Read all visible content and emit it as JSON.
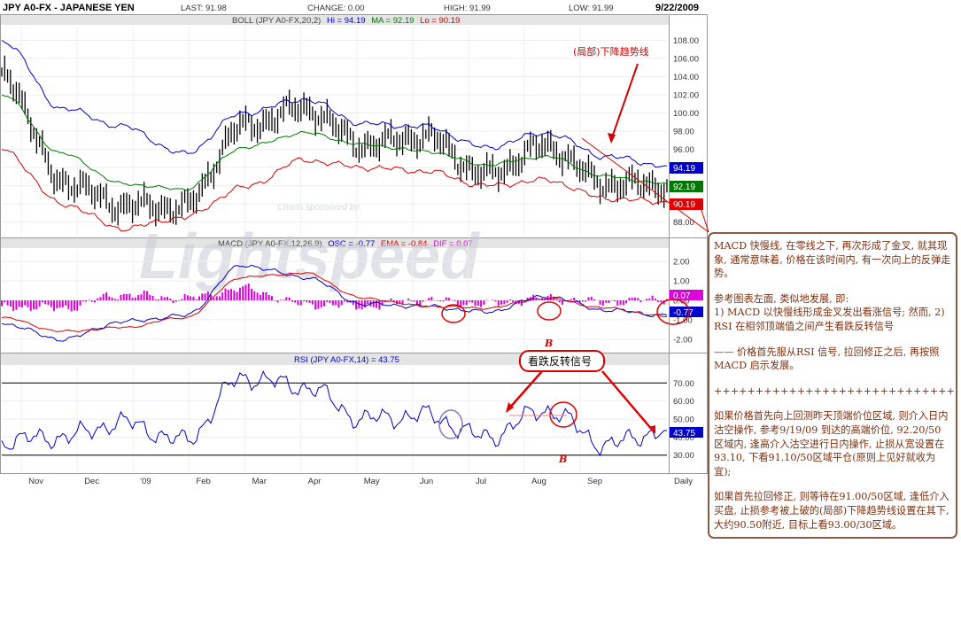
{
  "header": {
    "symbol": "JPY A0-FX - JAPANESE YEN",
    "last": "LAST: 91.98",
    "change": "CHANGE: 0.00",
    "high": "HIGH: 91.99",
    "low": "LOW: 91.99",
    "date": "9/22/2009"
  },
  "boll": {
    "title": "BOLL (JPY A0-FX,20,2)",
    "hi_label": "Hi = 94.19",
    "ma_label": "MA = 92.19",
    "lo_label": "Lo = 90.19",
    "yticks": [
      "108.00",
      "106.00",
      "104.00",
      "102.00",
      "100.00",
      "98.00",
      "96.00",
      "94.00",
      "92.00",
      "90.00",
      "88.00"
    ],
    "ytick_values": [
      108,
      106,
      104,
      102,
      100,
      98,
      96,
      94,
      92,
      90,
      88
    ],
    "ylim": [
      86.5,
      109.5
    ],
    "hi_badge": "94.19",
    "ma_badge": "92.19",
    "lo_badge": "90.19",
    "annotation": "(局部)下降趋势线",
    "watermark_small": "Charts sponsored by:",
    "watermark_big": "Lightspeed"
  },
  "macd": {
    "title": "MACD (JPY A0-FX,12,26,9)",
    "osc_label": "OSC = -0.77",
    "ema_label": "EMA = -0.84",
    "dif_label": "DIF = 0.07",
    "yticks": [
      "2.00",
      "1.00",
      "0.00",
      "-1.00",
      "-2.00"
    ],
    "ytick_values": [
      2,
      1,
      0,
      -1,
      -2
    ],
    "ylim": [
      -2.6,
      2.6
    ],
    "dif_badge": "0.07",
    "osc_badge": "-0.77"
  },
  "rsi": {
    "title": "RSI (JPY A0-FX,14) = 43.75",
    "yticks": [
      "70.00",
      "60.00",
      "50.00",
      "40.00",
      "30.00"
    ],
    "ytick_values": [
      70,
      60,
      50,
      40,
      30
    ],
    "ylim": [
      21,
      79
    ],
    "badge": "43.75",
    "callout": "看跌反转信号",
    "marker_b_top": "B",
    "marker_b_bottom": "B"
  },
  "xaxis": {
    "months": [
      "Nov",
      "Dec",
      "'09",
      "Feb",
      "Mar",
      "Apr",
      "May",
      "Jun",
      "Jul",
      "Aug",
      "Sep"
    ],
    "month_index": [
      0,
      1,
      2,
      3,
      4,
      5,
      6,
      7,
      8,
      9,
      10
    ],
    "period": "Daily"
  },
  "colors": {
    "upper_band": "#0000cc",
    "middle_band": "#007700",
    "lower_band": "#dd0000",
    "price": "#000000",
    "macd_hist": "#dd00dd",
    "annotation": "#d40000",
    "note_text": "#7a2f10",
    "note_border": "#8a5a44"
  },
  "note": {
    "p1": "MACD 快慢线, 在零线之下, 再次形成了金叉, 就其现象, 通常意味着, 价格在该时间内, 有一次向上的反弹走势。",
    "p2a": "参考图表左面, 类似地发展, 即:",
    "p2b": "1) MACD 以快慢线形成金叉发出看涨信号; 然而, 2) RSI 在相邻顶端值之间产生看跌反转信号",
    "p3": "—— 价格首先服从RSI 信号, 拉回修正之后, 再按照MACD 启示发展。",
    "divider": "+++++++++++++++++++++++++++++",
    "p4": "如果价格首先向上回测昨天顶端价位区域, 则介入日内沽空操作, 参考9/19/09 到达的高端价位, 92.20/50 区域内, 逢高介入沽空进行日内操作, 止损从宽设置在93.10, 下看91.10/50区域平仓(原则上见好就收为宜);",
    "p5": "如果首先拉回修正, 则等待在91.00/50区域, 逢低介入买盘, 止损参考被上破的(局部)下降趋势线设置在其下, 大约90.50附近, 目标上看93.00/30区域。"
  },
  "chart_data": [
    {
      "type": "line",
      "title": "BOLL (JPY A0-FX,20,2)",
      "x": [
        "Nov",
        "Dec",
        "'09",
        "Feb",
        "Mar",
        "Apr",
        "May",
        "Jun",
        "Jul",
        "Aug",
        "Sep",
        "Sep-22"
      ],
      "ylim": [
        86.5,
        109.5
      ],
      "series": [
        {
          "name": "Price",
          "values": [
            104.5,
            92.5,
            89.8,
            89.6,
            98.5,
            100.5,
            96.5,
            97.4,
            93.2,
            96.3,
            92.2,
            91.98
          ]
        },
        {
          "name": "Hi",
          "values": [
            108.0,
            100.5,
            98.5,
            95.5,
            100.0,
            101.5,
            98.8,
            98.5,
            96.2,
            97.8,
            95.2,
            94.19
          ]
        },
        {
          "name": "MA",
          "values": [
            102.0,
            95.5,
            92.2,
            91.6,
            96.2,
            97.8,
            96.5,
            95.8,
            94.3,
            95.2,
            93.0,
            92.19
          ]
        },
        {
          "name": "Lo",
          "values": [
            96.0,
            90.0,
            87.3,
            88.5,
            91.8,
            94.8,
            94.0,
            93.6,
            92.0,
            92.6,
            90.6,
            90.19
          ]
        }
      ]
    },
    {
      "type": "line",
      "title": "MACD (JPY A0-FX,12,26,9)",
      "x": [
        "Nov",
        "Dec",
        "'09",
        "Feb",
        "Mar",
        "Apr",
        "May",
        "Jun",
        "Jul",
        "Aug",
        "Sep",
        "Sep-22"
      ],
      "ylim": [
        -2.6,
        2.6
      ],
      "series": [
        {
          "name": "OSC",
          "values": [
            -1.2,
            -2.0,
            -1.1,
            -0.8,
            1.8,
            1.2,
            -0.2,
            -0.3,
            -0.6,
            0.2,
            -0.5,
            -0.77
          ]
        },
        {
          "name": "EMA",
          "values": [
            -0.9,
            -1.6,
            -1.4,
            -0.9,
            1.2,
            1.4,
            0.1,
            -0.3,
            -0.4,
            0.1,
            -0.4,
            -0.84
          ]
        },
        {
          "name": "DIF",
          "values": [
            -0.3,
            -0.4,
            0.3,
            0.1,
            0.6,
            -0.2,
            -0.3,
            0.0,
            -0.2,
            0.1,
            -0.1,
            0.07
          ]
        }
      ]
    },
    {
      "type": "line",
      "title": "RSI (JPY A0-FX,14) = 43.75",
      "x": [
        "Nov",
        "Dec",
        "'09",
        "Feb",
        "Mar",
        "Apr",
        "May",
        "Jun",
        "Jul",
        "Aug",
        "Sep",
        "Sep-22"
      ],
      "ylim": [
        21,
        79
      ],
      "series": [
        {
          "name": "RSI",
          "values": [
            38,
            40,
            48,
            38,
            73,
            68,
            50,
            52,
            40,
            55,
            36,
            43.75
          ]
        }
      ]
    }
  ]
}
